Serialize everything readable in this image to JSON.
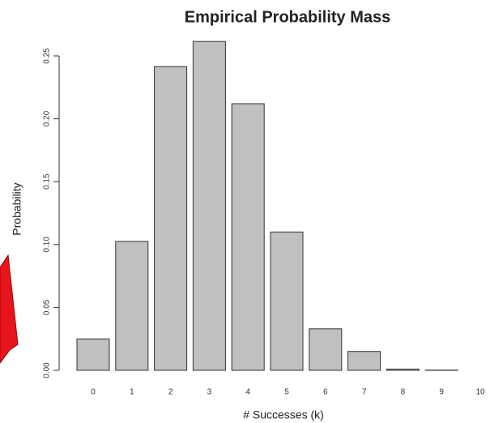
{
  "chart_data": {
    "type": "bar",
    "title": "Empirical Probability Mass",
    "x_label": "# Successes (k)",
    "y_label": "Probability",
    "categories": [
      "0",
      "1",
      "2",
      "3",
      "4",
      "5",
      "6",
      "7",
      "8",
      "9",
      "10"
    ],
    "values": [
      0.025,
      0.1025,
      0.2415,
      0.2615,
      0.212,
      0.11,
      0.033,
      0.015,
      0.001,
      0.0002,
      0
    ],
    "color": "#c0c0c0",
    "ylim": [
      0,
      0.25
    ],
    "yticks": [
      {
        "value": 0,
        "label": "0.00"
      },
      {
        "value": 0.05,
        "label": "0.05"
      },
      {
        "value": 0.1,
        "label": "0.10"
      },
      {
        "value": 0.15,
        "label": "0.15"
      },
      {
        "value": 0.2,
        "label": "0.20"
      },
      {
        "value": 0.25,
        "label": "0.25"
      }
    ]
  }
}
